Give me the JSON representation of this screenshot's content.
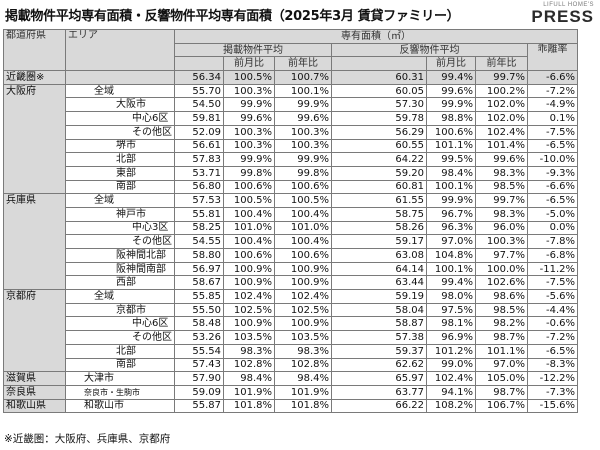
{
  "title": "掲載物件平均専有面積・反響物件平均専有面積（2025年3月 賃貸ファミリー）",
  "logo": {
    "top": "LIFULL HOME'S",
    "main": "PRESS"
  },
  "headers": {
    "pref": "都道府県",
    "area": "エリア",
    "group": "専有面積（㎡）",
    "listing": "掲載物件平均",
    "response": "反響物件平均",
    "gap": "乖離率",
    "mom": "前月比",
    "yoy": "前年比"
  },
  "rows": [
    {
      "pref": "近畿圏※",
      "area": "",
      "a": "56.34",
      "b": "100.5%",
      "c": "100.7%",
      "d": "60.31",
      "e": "99.4%",
      "f": "99.7%",
      "g": "-6.6%"
    },
    {
      "pref": "大阪府",
      "area": "全域",
      "a": "55.70",
      "b": "100.3%",
      "c": "100.1%",
      "d": "60.05",
      "e": "99.6%",
      "f": "100.2%",
      "g": "-7.2%"
    },
    {
      "pref": "",
      "area": "大阪市",
      "a": "54.50",
      "b": "99.9%",
      "c": "99.9%",
      "d": "57.30",
      "e": "99.9%",
      "f": "102.0%",
      "g": "-4.9%"
    },
    {
      "pref": "",
      "area": "中心6区",
      "a": "59.81",
      "b": "99.6%",
      "c": "99.6%",
      "d": "59.78",
      "e": "98.8%",
      "f": "102.0%",
      "g": "0.1%"
    },
    {
      "pref": "",
      "area": "その他区",
      "a": "52.09",
      "b": "100.3%",
      "c": "100.3%",
      "d": "56.29",
      "e": "100.6%",
      "f": "102.4%",
      "g": "-7.5%"
    },
    {
      "pref": "",
      "area": "堺市",
      "a": "56.61",
      "b": "100.3%",
      "c": "100.3%",
      "d": "60.55",
      "e": "101.1%",
      "f": "101.4%",
      "g": "-6.5%"
    },
    {
      "pref": "",
      "area": "北部",
      "a": "57.83",
      "b": "99.9%",
      "c": "99.9%",
      "d": "64.22",
      "e": "99.5%",
      "f": "99.6%",
      "g": "-10.0%"
    },
    {
      "pref": "",
      "area": "東部",
      "a": "53.71",
      "b": "99.8%",
      "c": "99.8%",
      "d": "59.20",
      "e": "98.4%",
      "f": "98.3%",
      "g": "-9.3%"
    },
    {
      "pref": "",
      "area": "南部",
      "a": "56.80",
      "b": "100.6%",
      "c": "100.6%",
      "d": "60.81",
      "e": "100.1%",
      "f": "98.5%",
      "g": "-6.6%"
    },
    {
      "pref": "兵庫県",
      "area": "全域",
      "a": "57.53",
      "b": "100.5%",
      "c": "100.5%",
      "d": "61.55",
      "e": "99.9%",
      "f": "99.7%",
      "g": "-6.5%"
    },
    {
      "pref": "",
      "area": "神戸市",
      "a": "55.81",
      "b": "100.4%",
      "c": "100.4%",
      "d": "58.75",
      "e": "96.7%",
      "f": "98.3%",
      "g": "-5.0%"
    },
    {
      "pref": "",
      "area": "中心3区",
      "a": "58.25",
      "b": "101.0%",
      "c": "101.0%",
      "d": "58.26",
      "e": "96.3%",
      "f": "96.0%",
      "g": "0.0%"
    },
    {
      "pref": "",
      "area": "その他区",
      "a": "54.55",
      "b": "100.4%",
      "c": "100.4%",
      "d": "59.17",
      "e": "97.0%",
      "f": "100.3%",
      "g": "-7.8%"
    },
    {
      "pref": "",
      "area": "阪神間北部",
      "a": "58.80",
      "b": "100.6%",
      "c": "100.6%",
      "d": "63.08",
      "e": "104.8%",
      "f": "97.7%",
      "g": "-6.8%"
    },
    {
      "pref": "",
      "area": "阪神間南部",
      "a": "56.97",
      "b": "100.9%",
      "c": "100.9%",
      "d": "64.14",
      "e": "100.1%",
      "f": "100.0%",
      "g": "-11.2%"
    },
    {
      "pref": "",
      "area": "西部",
      "a": "58.67",
      "b": "100.9%",
      "c": "100.9%",
      "d": "63.44",
      "e": "99.4%",
      "f": "102.6%",
      "g": "-7.5%"
    },
    {
      "pref": "京都府",
      "area": "全域",
      "a": "55.85",
      "b": "102.4%",
      "c": "102.4%",
      "d": "59.19",
      "e": "98.0%",
      "f": "98.6%",
      "g": "-5.6%"
    },
    {
      "pref": "",
      "area": "京都市",
      "a": "55.50",
      "b": "102.5%",
      "c": "102.5%",
      "d": "58.04",
      "e": "97.5%",
      "f": "98.5%",
      "g": "-4.4%"
    },
    {
      "pref": "",
      "area": "中心6区",
      "a": "58.48",
      "b": "100.9%",
      "c": "100.9%",
      "d": "58.87",
      "e": "98.1%",
      "f": "98.2%",
      "g": "-0.6%"
    },
    {
      "pref": "",
      "area": "その他区",
      "a": "53.26",
      "b": "103.5%",
      "c": "103.5%",
      "d": "57.38",
      "e": "96.9%",
      "f": "98.7%",
      "g": "-7.2%"
    },
    {
      "pref": "",
      "area": "北部",
      "a": "55.54",
      "b": "98.3%",
      "c": "98.3%",
      "d": "59.37",
      "e": "101.2%",
      "f": "101.1%",
      "g": "-6.5%"
    },
    {
      "pref": "",
      "area": "南部",
      "a": "57.43",
      "b": "102.8%",
      "c": "102.8%",
      "d": "62.62",
      "e": "99.0%",
      "f": "97.0%",
      "g": "-8.3%"
    },
    {
      "pref": "滋賀県",
      "area": "大津市",
      "a": "57.90",
      "b": "98.4%",
      "c": "98.4%",
      "d": "65.97",
      "e": "102.4%",
      "f": "105.0%",
      "g": "-12.2%"
    },
    {
      "pref": "奈良県",
      "area": "奈良市・生駒市",
      "a": "59.09",
      "b": "101.9%",
      "c": "101.9%",
      "d": "63.77",
      "e": "94.1%",
      "f": "98.7%",
      "g": "-7.3%"
    },
    {
      "pref": "和歌山県",
      "area": "和歌山市",
      "a": "55.87",
      "b": "101.8%",
      "c": "101.8%",
      "d": "66.22",
      "e": "108.2%",
      "f": "106.7%",
      "g": "-15.6%"
    }
  ],
  "note": "※近畿圏：大阪府、兵庫県、京都府"
}
